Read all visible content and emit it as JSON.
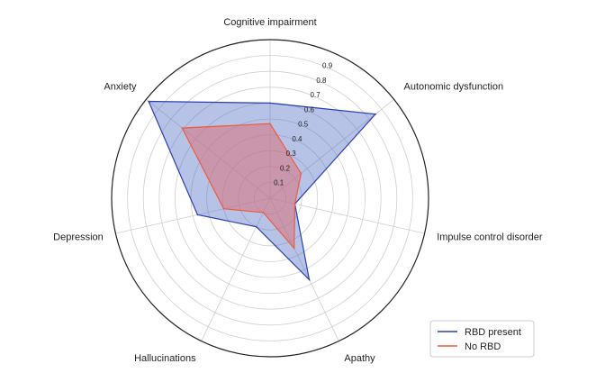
{
  "chart_data": {
    "type": "radar",
    "axes": [
      "Cognitive impairment",
      "Autonomic dysfunction",
      "Impulse control disorder",
      "Apathy",
      "Hallucinations",
      "Depression",
      "Anxiety"
    ],
    "rlim": [
      0,
      1.0
    ],
    "r_ticks": [
      "0.1",
      "0.2",
      "0.3",
      "0.4",
      "0.5",
      "0.6",
      "0.7",
      "0.8",
      "0.9"
    ],
    "grid": true,
    "legend_position": "bottom-right",
    "series": [
      {
        "name": "RBD present",
        "values": [
          0.6,
          0.85,
          0.16,
          0.57,
          0.2,
          0.47,
          0.98
        ],
        "line_color": "#2a3fb0",
        "fill_color": "#4a66c4"
      },
      {
        "name": "No RBD",
        "values": [
          0.47,
          0.25,
          0.16,
          0.35,
          0.1,
          0.3,
          0.71
        ],
        "line_color": "#f05a3c",
        "fill_color": "#d9737a"
      }
    ]
  }
}
